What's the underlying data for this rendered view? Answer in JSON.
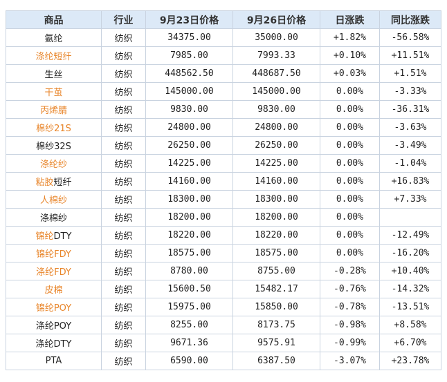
{
  "colors": {
    "header_bg": "#dce9f7",
    "border": "#c9d3e0",
    "orange_link": "#e8852a",
    "up": "#e0202a",
    "down": "#1f9a3c"
  },
  "table": {
    "headers": [
      "商品",
      "行业",
      "9月23日价格",
      "9月26日价格",
      "日涨跌",
      "同比涨跌"
    ],
    "rows": [
      {
        "name_parts": [
          {
            "text": "氨纶",
            "style": "dark"
          }
        ],
        "industry": "纺织",
        "price_0923": "34375.00",
        "price_0926": "35000.00",
        "daily": "+1.82%",
        "daily_dir": "pos",
        "yoy": "-56.58%",
        "yoy_dir": "neg"
      },
      {
        "name_parts": [
          {
            "text": "涤纶短纤",
            "style": "orange"
          }
        ],
        "industry": "纺织",
        "price_0923": "7985.00",
        "price_0926": "7993.33",
        "daily": "+0.10%",
        "daily_dir": "pos",
        "yoy": "+11.51%",
        "yoy_dir": "pos"
      },
      {
        "name_parts": [
          {
            "text": "生丝",
            "style": "dark"
          }
        ],
        "industry": "纺织",
        "price_0923": "448562.50",
        "price_0926": "448687.50",
        "daily": "+0.03%",
        "daily_dir": "pos",
        "yoy": "+1.51%",
        "yoy_dir": "pos"
      },
      {
        "name_parts": [
          {
            "text": "干茧",
            "style": "orange"
          }
        ],
        "industry": "纺织",
        "price_0923": "145000.00",
        "price_0926": "145000.00",
        "daily": "0.00%",
        "daily_dir": "zero",
        "yoy": "-3.33%",
        "yoy_dir": "neg"
      },
      {
        "name_parts": [
          {
            "text": "丙烯腈",
            "style": "orange"
          }
        ],
        "industry": "纺织",
        "price_0923": "9830.00",
        "price_0926": "9830.00",
        "daily": "0.00%",
        "daily_dir": "zero",
        "yoy": "-36.31%",
        "yoy_dir": "neg"
      },
      {
        "name_parts": [
          {
            "text": "棉纱21S",
            "style": "orange"
          }
        ],
        "industry": "纺织",
        "price_0923": "24800.00",
        "price_0926": "24800.00",
        "daily": "0.00%",
        "daily_dir": "zero",
        "yoy": "-3.63%",
        "yoy_dir": "neg"
      },
      {
        "name_parts": [
          {
            "text": "棉纱32S",
            "style": "dark"
          }
        ],
        "industry": "纺织",
        "price_0923": "26250.00",
        "price_0926": "26250.00",
        "daily": "0.00%",
        "daily_dir": "zero",
        "yoy": "-3.49%",
        "yoy_dir": "neg"
      },
      {
        "name_parts": [
          {
            "text": "涤纶纱",
            "style": "orange"
          }
        ],
        "industry": "纺织",
        "price_0923": "14225.00",
        "price_0926": "14225.00",
        "daily": "0.00%",
        "daily_dir": "zero",
        "yoy": "-1.04%",
        "yoy_dir": "neg"
      },
      {
        "name_parts": [
          {
            "text": "粘胶",
            "style": "orange"
          },
          {
            "text": "短纤",
            "style": "dark"
          }
        ],
        "industry": "纺织",
        "price_0923": "14160.00",
        "price_0926": "14160.00",
        "daily": "0.00%",
        "daily_dir": "zero",
        "yoy": "+16.83%",
        "yoy_dir": "pos"
      },
      {
        "name_parts": [
          {
            "text": "人棉纱",
            "style": "orange"
          }
        ],
        "industry": "纺织",
        "price_0923": "18300.00",
        "price_0926": "18300.00",
        "daily": "0.00%",
        "daily_dir": "zero",
        "yoy": "+7.33%",
        "yoy_dir": "pos"
      },
      {
        "name_parts": [
          {
            "text": "涤棉纱",
            "style": "dark"
          }
        ],
        "industry": "纺织",
        "price_0923": "18200.00",
        "price_0926": "18200.00",
        "daily": "0.00%",
        "daily_dir": "zero",
        "yoy": "",
        "yoy_dir": "zero"
      },
      {
        "name_parts": [
          {
            "text": "锦纶",
            "style": "orange"
          },
          {
            "text": "DTY",
            "style": "dark"
          }
        ],
        "industry": "纺织",
        "price_0923": "18220.00",
        "price_0926": "18220.00",
        "daily": "0.00%",
        "daily_dir": "zero",
        "yoy": "-12.49%",
        "yoy_dir": "neg"
      },
      {
        "name_parts": [
          {
            "text": "锦纶FDY",
            "style": "orange"
          }
        ],
        "industry": "纺织",
        "price_0923": "18575.00",
        "price_0926": "18575.00",
        "daily": "0.00%",
        "daily_dir": "zero",
        "yoy": "-16.20%",
        "yoy_dir": "neg"
      },
      {
        "name_parts": [
          {
            "text": "涤纶FDY",
            "style": "orange"
          }
        ],
        "industry": "纺织",
        "price_0923": "8780.00",
        "price_0926": "8755.00",
        "daily": "-0.28%",
        "daily_dir": "neg",
        "yoy": "+10.40%",
        "yoy_dir": "pos"
      },
      {
        "name_parts": [
          {
            "text": "皮棉",
            "style": "orange"
          }
        ],
        "industry": "纺织",
        "price_0923": "15600.50",
        "price_0926": "15482.17",
        "daily": "-0.76%",
        "daily_dir": "neg",
        "yoy": "-14.32%",
        "yoy_dir": "neg"
      },
      {
        "name_parts": [
          {
            "text": "锦纶POY",
            "style": "orange"
          }
        ],
        "industry": "纺织",
        "price_0923": "15975.00",
        "price_0926": "15850.00",
        "daily": "-0.78%",
        "daily_dir": "neg",
        "yoy": "-13.51%",
        "yoy_dir": "neg"
      },
      {
        "name_parts": [
          {
            "text": "涤纶POY",
            "style": "dark"
          }
        ],
        "industry": "纺织",
        "price_0923": "8255.00",
        "price_0926": "8173.75",
        "daily": "-0.98%",
        "daily_dir": "neg",
        "yoy": "+8.58%",
        "yoy_dir": "pos"
      },
      {
        "name_parts": [
          {
            "text": "涤纶DTY",
            "style": "dark"
          }
        ],
        "industry": "纺织",
        "price_0923": "9671.36",
        "price_0926": "9575.91",
        "daily": "-0.99%",
        "daily_dir": "neg",
        "yoy": "+6.70%",
        "yoy_dir": "pos"
      },
      {
        "name_parts": [
          {
            "text": "PTA",
            "style": "dark"
          }
        ],
        "industry": "纺织",
        "price_0923": "6590.00",
        "price_0926": "6387.50",
        "daily": "-3.07%",
        "daily_dir": "neg",
        "yoy": "+23.78%",
        "yoy_dir": "pos"
      }
    ]
  }
}
